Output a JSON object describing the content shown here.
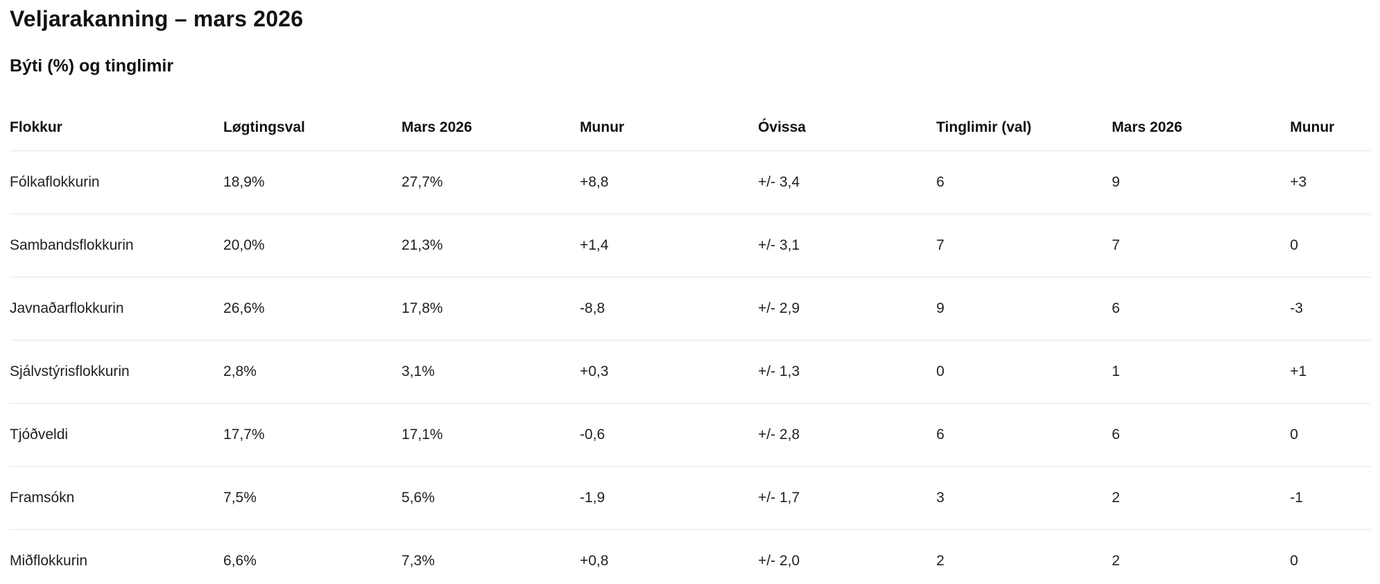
{
  "page": {
    "title": "Veljarakanning – mars 2026",
    "subtitle": "Býti (%) og tinglimir"
  },
  "table": {
    "headers": [
      "Flokkur",
      "Løgtingsval",
      "Mars 2026",
      "Munur",
      "Óvissa",
      "Tinglimir (val)",
      "Mars 2026",
      "Munur"
    ],
    "rows": [
      [
        "Fólkaflokkurin",
        "18,9%",
        "27,7%",
        "+8,8",
        "+/- 3,4",
        "6",
        "9",
        "+3"
      ],
      [
        "Sambandsflokkurin",
        "20,0%",
        "21,3%",
        "+1,4",
        "+/- 3,1",
        "7",
        "7",
        "0"
      ],
      [
        "Javnaðarflokkurin",
        "26,6%",
        "17,8%",
        "-8,8",
        "+/- 2,9",
        "9",
        "6",
        "-3"
      ],
      [
        "Sjálvstýrisflokkurin",
        "2,8%",
        "3,1%",
        "+0,3",
        "+/- 1,3",
        "0",
        "1",
        "+1"
      ],
      [
        "Tjóðveldi",
        "17,7%",
        "17,1%",
        "-0,6",
        "+/- 2,8",
        "6",
        "6",
        "0"
      ],
      [
        "Framsókn",
        "7,5%",
        "5,6%",
        "-1,9",
        "+/- 1,7",
        "3",
        "2",
        "-1"
      ],
      [
        "Miðflokkurin",
        "6,6%",
        "7,3%",
        "+0,8",
        "+/- 2,0",
        "2",
        "2",
        "0"
      ]
    ]
  },
  "chart_data": {
    "type": "table",
    "title": "Veljarakanning – mars 2026",
    "subtitle": "Býti (%) og tinglimir",
    "columns": [
      "Flokkur",
      "Løgtingsval",
      "Mars 2026",
      "Munur",
      "Óvissa",
      "Tinglimir (val)",
      "Mars 2026",
      "Munur"
    ],
    "parties": [
      "Fólkaflokkurin",
      "Sambandsflokkurin",
      "Javnaðarflokkurin",
      "Sjálvstýrisflokkurin",
      "Tjóðveldi",
      "Framsókn",
      "Miðflokkurin"
    ],
    "series": [
      {
        "name": "Løgtingsval (%)",
        "values": [
          18.9,
          20.0,
          26.6,
          2.8,
          17.7,
          7.5,
          6.6
        ]
      },
      {
        "name": "Mars 2026 (%)",
        "values": [
          27.7,
          21.3,
          17.8,
          3.1,
          17.1,
          5.6,
          7.3
        ]
      },
      {
        "name": "Munur (%)",
        "values": [
          8.8,
          1.4,
          -8.8,
          0.3,
          -0.6,
          -1.9,
          0.8
        ]
      },
      {
        "name": "Óvissa (+/-)",
        "values": [
          3.4,
          3.1,
          2.9,
          1.3,
          2.8,
          1.7,
          2.0
        ]
      },
      {
        "name": "Tinglimir (val)",
        "values": [
          6,
          7,
          9,
          0,
          6,
          3,
          2
        ]
      },
      {
        "name": "Tinglimir mars 2026",
        "values": [
          9,
          7,
          6,
          1,
          6,
          2,
          2
        ]
      },
      {
        "name": "Munur (tinglimir)",
        "values": [
          3,
          0,
          -3,
          1,
          0,
          -1,
          0
        ]
      }
    ],
    "notes": "Decimal comma formatting; grid lines horizontal only (row separators)"
  }
}
